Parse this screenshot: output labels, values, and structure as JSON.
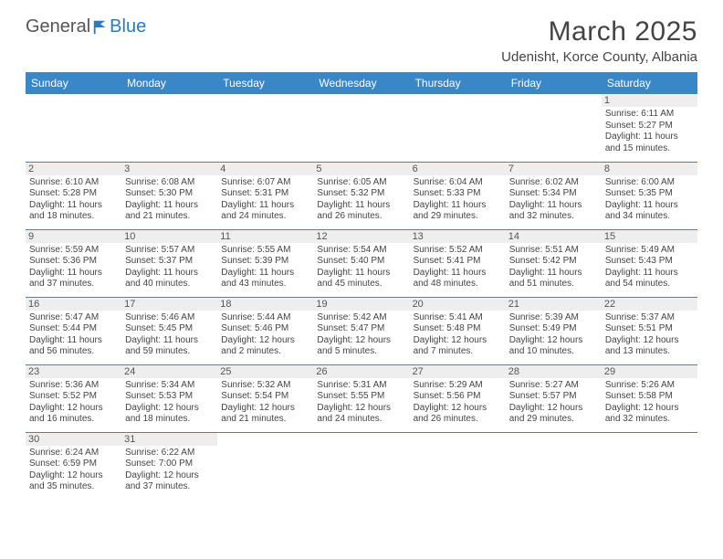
{
  "logo": {
    "text1": "General",
    "text2": "Blue"
  },
  "title": "March 2025",
  "location": "Udenisht, Korce County, Albania",
  "colors": {
    "header_bg": "#3a87c7",
    "header_text": "#ffffff",
    "border": "#3a87c7",
    "daynum_bg": "#eeeeee",
    "text": "#444444",
    "logo_gray": "#555555",
    "logo_blue": "#2b7bbf"
  },
  "weekdays": [
    "Sunday",
    "Monday",
    "Tuesday",
    "Wednesday",
    "Thursday",
    "Friday",
    "Saturday"
  ],
  "weeks": [
    [
      {},
      {},
      {},
      {},
      {},
      {},
      {
        "day": "1",
        "sunrise": "Sunrise: 6:11 AM",
        "sunset": "Sunset: 5:27 PM",
        "daylight": "Daylight: 11 hours and 15 minutes."
      }
    ],
    [
      {
        "day": "2",
        "sunrise": "Sunrise: 6:10 AM",
        "sunset": "Sunset: 5:28 PM",
        "daylight": "Daylight: 11 hours and 18 minutes."
      },
      {
        "day": "3",
        "sunrise": "Sunrise: 6:08 AM",
        "sunset": "Sunset: 5:30 PM",
        "daylight": "Daylight: 11 hours and 21 minutes."
      },
      {
        "day": "4",
        "sunrise": "Sunrise: 6:07 AM",
        "sunset": "Sunset: 5:31 PM",
        "daylight": "Daylight: 11 hours and 24 minutes."
      },
      {
        "day": "5",
        "sunrise": "Sunrise: 6:05 AM",
        "sunset": "Sunset: 5:32 PM",
        "daylight": "Daylight: 11 hours and 26 minutes."
      },
      {
        "day": "6",
        "sunrise": "Sunrise: 6:04 AM",
        "sunset": "Sunset: 5:33 PM",
        "daylight": "Daylight: 11 hours and 29 minutes."
      },
      {
        "day": "7",
        "sunrise": "Sunrise: 6:02 AM",
        "sunset": "Sunset: 5:34 PM",
        "daylight": "Daylight: 11 hours and 32 minutes."
      },
      {
        "day": "8",
        "sunrise": "Sunrise: 6:00 AM",
        "sunset": "Sunset: 5:35 PM",
        "daylight": "Daylight: 11 hours and 34 minutes."
      }
    ],
    [
      {
        "day": "9",
        "sunrise": "Sunrise: 5:59 AM",
        "sunset": "Sunset: 5:36 PM",
        "daylight": "Daylight: 11 hours and 37 minutes."
      },
      {
        "day": "10",
        "sunrise": "Sunrise: 5:57 AM",
        "sunset": "Sunset: 5:37 PM",
        "daylight": "Daylight: 11 hours and 40 minutes."
      },
      {
        "day": "11",
        "sunrise": "Sunrise: 5:55 AM",
        "sunset": "Sunset: 5:39 PM",
        "daylight": "Daylight: 11 hours and 43 minutes."
      },
      {
        "day": "12",
        "sunrise": "Sunrise: 5:54 AM",
        "sunset": "Sunset: 5:40 PM",
        "daylight": "Daylight: 11 hours and 45 minutes."
      },
      {
        "day": "13",
        "sunrise": "Sunrise: 5:52 AM",
        "sunset": "Sunset: 5:41 PM",
        "daylight": "Daylight: 11 hours and 48 minutes."
      },
      {
        "day": "14",
        "sunrise": "Sunrise: 5:51 AM",
        "sunset": "Sunset: 5:42 PM",
        "daylight": "Daylight: 11 hours and 51 minutes."
      },
      {
        "day": "15",
        "sunrise": "Sunrise: 5:49 AM",
        "sunset": "Sunset: 5:43 PM",
        "daylight": "Daylight: 11 hours and 54 minutes."
      }
    ],
    [
      {
        "day": "16",
        "sunrise": "Sunrise: 5:47 AM",
        "sunset": "Sunset: 5:44 PM",
        "daylight": "Daylight: 11 hours and 56 minutes."
      },
      {
        "day": "17",
        "sunrise": "Sunrise: 5:46 AM",
        "sunset": "Sunset: 5:45 PM",
        "daylight": "Daylight: 11 hours and 59 minutes."
      },
      {
        "day": "18",
        "sunrise": "Sunrise: 5:44 AM",
        "sunset": "Sunset: 5:46 PM",
        "daylight": "Daylight: 12 hours and 2 minutes."
      },
      {
        "day": "19",
        "sunrise": "Sunrise: 5:42 AM",
        "sunset": "Sunset: 5:47 PM",
        "daylight": "Daylight: 12 hours and 5 minutes."
      },
      {
        "day": "20",
        "sunrise": "Sunrise: 5:41 AM",
        "sunset": "Sunset: 5:48 PM",
        "daylight": "Daylight: 12 hours and 7 minutes."
      },
      {
        "day": "21",
        "sunrise": "Sunrise: 5:39 AM",
        "sunset": "Sunset: 5:49 PM",
        "daylight": "Daylight: 12 hours and 10 minutes."
      },
      {
        "day": "22",
        "sunrise": "Sunrise: 5:37 AM",
        "sunset": "Sunset: 5:51 PM",
        "daylight": "Daylight: 12 hours and 13 minutes."
      }
    ],
    [
      {
        "day": "23",
        "sunrise": "Sunrise: 5:36 AM",
        "sunset": "Sunset: 5:52 PM",
        "daylight": "Daylight: 12 hours and 16 minutes."
      },
      {
        "day": "24",
        "sunrise": "Sunrise: 5:34 AM",
        "sunset": "Sunset: 5:53 PM",
        "daylight": "Daylight: 12 hours and 18 minutes."
      },
      {
        "day": "25",
        "sunrise": "Sunrise: 5:32 AM",
        "sunset": "Sunset: 5:54 PM",
        "daylight": "Daylight: 12 hours and 21 minutes."
      },
      {
        "day": "26",
        "sunrise": "Sunrise: 5:31 AM",
        "sunset": "Sunset: 5:55 PM",
        "daylight": "Daylight: 12 hours and 24 minutes."
      },
      {
        "day": "27",
        "sunrise": "Sunrise: 5:29 AM",
        "sunset": "Sunset: 5:56 PM",
        "daylight": "Daylight: 12 hours and 26 minutes."
      },
      {
        "day": "28",
        "sunrise": "Sunrise: 5:27 AM",
        "sunset": "Sunset: 5:57 PM",
        "daylight": "Daylight: 12 hours and 29 minutes."
      },
      {
        "day": "29",
        "sunrise": "Sunrise: 5:26 AM",
        "sunset": "Sunset: 5:58 PM",
        "daylight": "Daylight: 12 hours and 32 minutes."
      }
    ],
    [
      {
        "day": "30",
        "sunrise": "Sunrise: 6:24 AM",
        "sunset": "Sunset: 6:59 PM",
        "daylight": "Daylight: 12 hours and 35 minutes."
      },
      {
        "day": "31",
        "sunrise": "Sunrise: 6:22 AM",
        "sunset": "Sunset: 7:00 PM",
        "daylight": "Daylight: 12 hours and 37 minutes."
      },
      {},
      {},
      {},
      {},
      {}
    ]
  ]
}
